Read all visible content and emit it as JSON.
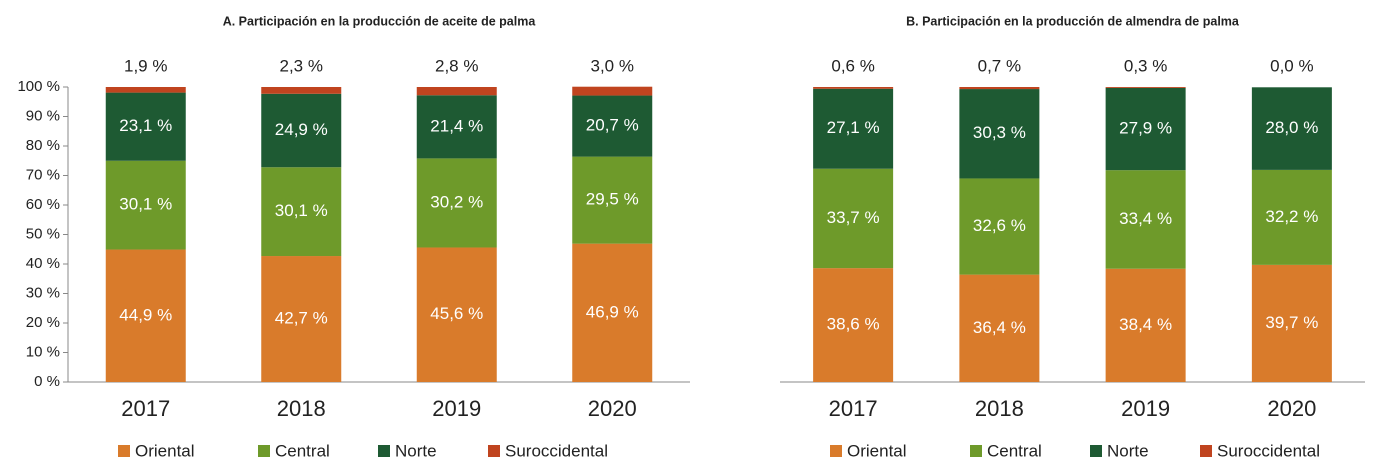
{
  "chart_data": [
    {
      "type": "stacked_bar",
      "title": "A. Participación en la producción de aceite de palma",
      "categories": [
        "2017",
        "2018",
        "2019",
        "2020"
      ],
      "series": [
        {
          "name": "Oriental",
          "color": "#d97b2b",
          "values": [
            44.9,
            42.7,
            45.6,
            46.9
          ],
          "value_labels": [
            "44,9 %",
            "42,7 %",
            "45,6 %",
            "46,9 %"
          ]
        },
        {
          "name": "Central",
          "color": "#6e9a2a",
          "values": [
            30.1,
            30.1,
            30.2,
            29.5
          ],
          "value_labels": [
            "30,1 %",
            "30,1 %",
            "30,2 %",
            "29,5 %"
          ]
        },
        {
          "name": "Norte",
          "color": "#1e5a33",
          "values": [
            23.1,
            24.9,
            21.4,
            20.7
          ],
          "value_labels": [
            "23,1 %",
            "24,9 %",
            "21,4 %",
            "20,7 %"
          ]
        },
        {
          "name": "Suroccidental",
          "color": "#c0441f",
          "values": [
            1.9,
            2.3,
            2.8,
            3.0
          ],
          "value_labels": [
            "1,9 %",
            "2,3 %",
            "2,8 %",
            "3,0 %"
          ]
        }
      ],
      "ylim": [
        0,
        100
      ],
      "yticks": [
        {
          "value": 0,
          "label": "0 %"
        },
        {
          "value": 10,
          "label": "10 %"
        },
        {
          "value": 20,
          "label": "20 %"
        },
        {
          "value": 30,
          "label": "30 %"
        },
        {
          "value": 40,
          "label": "40 %"
        },
        {
          "value": 50,
          "label": "50 %"
        },
        {
          "value": 60,
          "label": "60 %"
        },
        {
          "value": 70,
          "label": "70 %"
        },
        {
          "value": 80,
          "label": "80 %"
        },
        {
          "value": 90,
          "label": "90 %"
        },
        {
          "value": 100,
          "label": "100 %"
        }
      ],
      "legend": "bottom"
    },
    {
      "type": "stacked_bar",
      "title": "B. Participación en la producción de almendra de palma",
      "categories": [
        "2017",
        "2018",
        "2019",
        "2020"
      ],
      "series": [
        {
          "name": "Oriental",
          "color": "#d97b2b",
          "values": [
            38.6,
            36.4,
            38.4,
            39.7
          ],
          "value_labels": [
            "38,6 %",
            "36,4 %",
            "38,4 %",
            "39,7 %"
          ]
        },
        {
          "name": "Central",
          "color": "#6e9a2a",
          "values": [
            33.7,
            32.6,
            33.4,
            32.2
          ],
          "value_labels": [
            "33,7 %",
            "32,6 %",
            "33,4 %",
            "32,2 %"
          ]
        },
        {
          "name": "Norte",
          "color": "#1e5a33",
          "values": [
            27.1,
            30.3,
            27.9,
            28.0
          ],
          "value_labels": [
            "27,1 %",
            "30,3 %",
            "27,9 %",
            "28,0 %"
          ]
        },
        {
          "name": "Suroccidental",
          "color": "#c0441f",
          "values": [
            0.6,
            0.7,
            0.3,
            0.0
          ],
          "value_labels": [
            "0,6 %",
            "0,7 %",
            "0,3 %",
            "0,0 %"
          ]
        }
      ],
      "ylim": [
        0,
        100
      ],
      "legend": "bottom"
    }
  ]
}
